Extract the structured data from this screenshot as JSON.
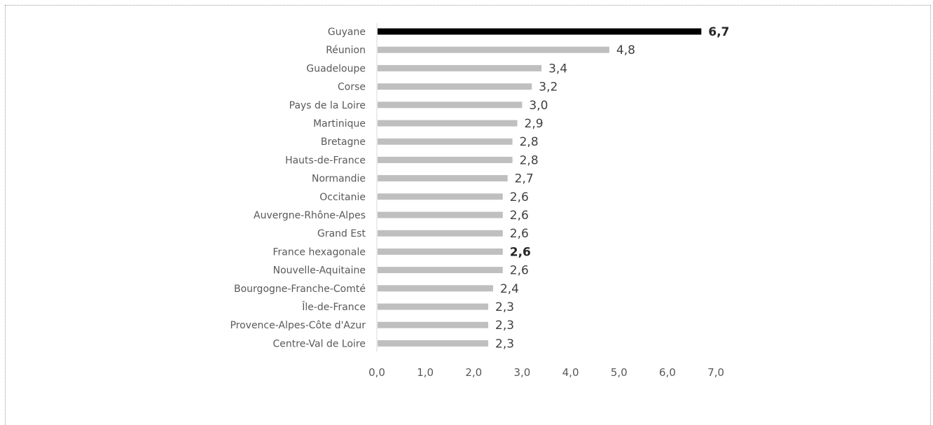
{
  "chart_data": {
    "type": "bar",
    "orientation": "horizontal",
    "categories": [
      "Guyane",
      "Réunion",
      "Guadeloupe",
      "Corse",
      "Pays de la Loire",
      "Martinique",
      "Bretagne",
      "Hauts-de-France",
      "Normandie",
      "Occitanie",
      "Auvergne-Rhône-Alpes",
      "Grand Est",
      "France hexagonale",
      "Nouvelle-Aquitaine",
      "Bourgogne-Franche-Comté",
      "Île-de-France",
      "Provence-Alpes-Côte d'Azur",
      "Centre-Val de Loire"
    ],
    "values": [
      6.7,
      4.8,
      3.4,
      3.2,
      3.0,
      2.9,
      2.8,
      2.8,
      2.7,
      2.6,
      2.6,
      2.6,
      2.6,
      2.6,
      2.4,
      2.3,
      2.3,
      2.3
    ],
    "value_labels": [
      "6,7",
      "4,8",
      "3,4",
      "3,2",
      "3,0",
      "2,9",
      "2,8",
      "2,8",
      "2,7",
      "2,6",
      "2,6",
      "2,6",
      "2,6",
      "2,6",
      "2,4",
      "2,3",
      "2,3",
      "2,3"
    ],
    "highlighted": [
      "Guyane"
    ],
    "bold_labels": [
      "Guyane",
      "France hexagonale"
    ],
    "xlim": [
      0,
      7
    ],
    "xticks": [
      0,
      1,
      2,
      3,
      4,
      5,
      6,
      7
    ],
    "xtick_labels": [
      "0,0",
      "1,0",
      "2,0",
      "3,0",
      "4,0",
      "5,0",
      "6,0",
      "7,0"
    ],
    "title": "",
    "xlabel": "",
    "ylabel": "",
    "grid": false,
    "legend": "none",
    "colors": {
      "bar": "#bfbfbf",
      "highlight": "#000000",
      "axis": "#d9d9d9"
    }
  }
}
